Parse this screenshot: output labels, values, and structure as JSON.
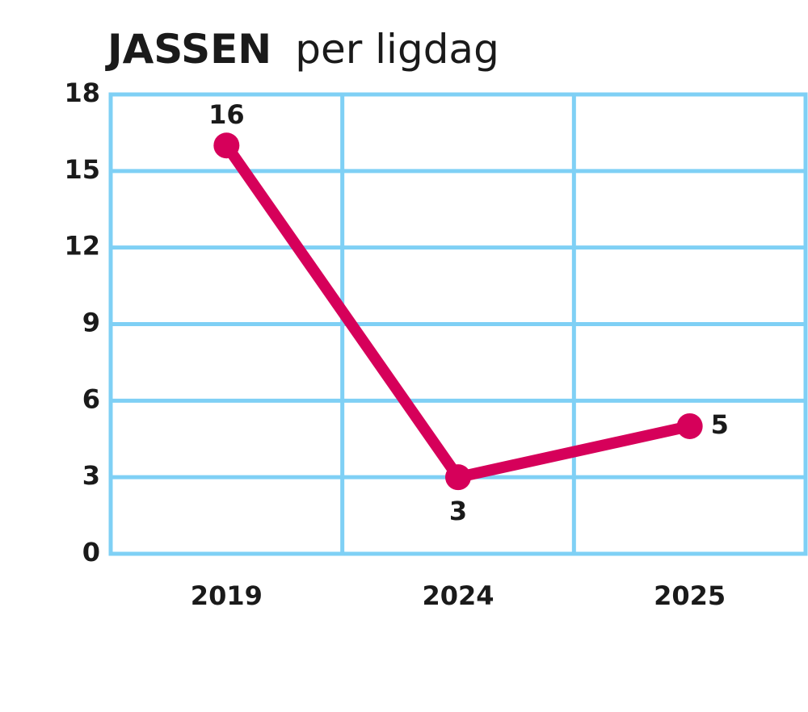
{
  "chart_data": {
    "type": "line",
    "title": [
      "JASSEN",
      "per ligdag"
    ],
    "categories": [
      "2019",
      "2024",
      "2025"
    ],
    "values": [
      16,
      3,
      5
    ],
    "color": "#d6005a",
    "grid_color": "#7fd0f5",
    "ylim": [
      0,
      18
    ],
    "yticks": [
      0,
      3,
      6,
      9,
      12,
      15,
      18
    ],
    "grid": true
  }
}
